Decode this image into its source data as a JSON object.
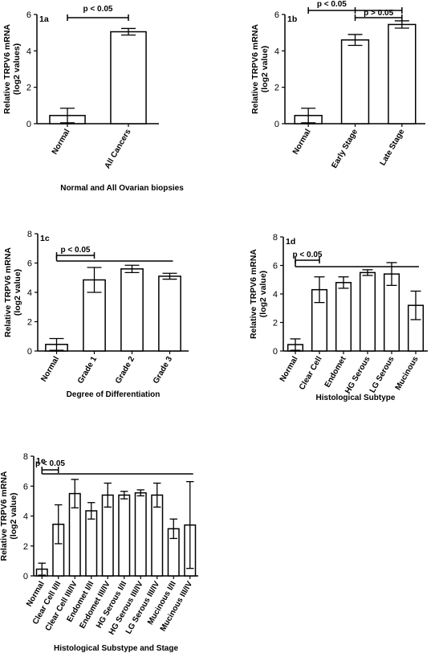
{
  "chart_data": [
    {
      "panel_label": "1a",
      "type": "bar",
      "ylabel_lines": [
        "Relative TRPV6 mRNA",
        "(log2 values)"
      ],
      "xlabel": "Normal and All Ovarian biopsies",
      "ylim": [
        0,
        6
      ],
      "yticks": [
        0,
        2,
        4,
        6
      ],
      "categories": [
        "Normal",
        "All Cancers"
      ],
      "values": [
        0.45,
        5.05
      ],
      "errors": [
        0.4,
        0.18
      ],
      "significance": [
        {
          "label": "p < 0.05",
          "from": 0,
          "to": [
            1
          ]
        }
      ]
    },
    {
      "panel_label": "1b",
      "type": "bar",
      "ylabel_lines": [
        "Relative TRPV6 mRNA",
        "(log2 value)"
      ],
      "xlabel": "",
      "ylim": [
        0,
        6
      ],
      "yticks": [
        0,
        2,
        4,
        6
      ],
      "categories": [
        "Normal",
        "Early Stage",
        "Late Stage"
      ],
      "values": [
        0.45,
        4.6,
        5.45
      ],
      "errors": [
        0.4,
        0.3,
        0.2
      ],
      "significance": [
        {
          "label": "p < 0.05",
          "from": 0,
          "to": [
            1,
            2
          ]
        },
        {
          "label": "p > 0.05",
          "from": 1,
          "to": [
            2
          ]
        }
      ]
    },
    {
      "panel_label": "1c",
      "type": "bar",
      "ylabel_lines": [
        "Relative TRPV6 mRNA",
        "(log2 value)"
      ],
      "xlabel": "Degree of Differentiation",
      "ylim": [
        0,
        8
      ],
      "yticks": [
        0,
        2,
        4,
        6,
        8
      ],
      "categories": [
        "Normal",
        "Grade 1",
        "Grade 2",
        "Grade 3"
      ],
      "values": [
        0.45,
        4.85,
        5.6,
        5.1
      ],
      "errors": [
        0.4,
        0.85,
        0.25,
        0.2
      ],
      "significance": [
        {
          "label": "p < 0.05",
          "from": 0,
          "to": [
            1,
            2,
            3
          ]
        }
      ]
    },
    {
      "panel_label": "1d",
      "type": "bar",
      "ylabel_lines": [
        "Relative TRPV6 mRNA",
        "(log2 value)"
      ],
      "xlabel": "Histological Subtype",
      "ylim": [
        0,
        8
      ],
      "yticks": [
        0,
        2,
        4,
        6,
        8
      ],
      "categories": [
        "Normal",
        "Clear Cell",
        "Endomet",
        "HG Serous",
        "LG Serous",
        "Mucinous"
      ],
      "values": [
        0.45,
        4.3,
        4.8,
        5.5,
        5.4,
        3.2
      ],
      "errors": [
        0.4,
        0.9,
        0.4,
        0.2,
        0.8,
        1.0
      ],
      "significance": [
        {
          "label": "p < 0.05",
          "from": 0,
          "to": [
            1,
            2,
            3,
            4,
            5
          ]
        }
      ]
    },
    {
      "panel_label": "1e",
      "type": "bar",
      "ylabel_lines": [
        "Relative TRPV6 mRNA",
        "(log2 value)"
      ],
      "xlabel": "Histological Substype and Stage",
      "ylim": [
        0,
        8
      ],
      "yticks": [
        0,
        2,
        4,
        6,
        8
      ],
      "categories": [
        "Normal",
        "Clear Cell I/II",
        "Clear Cell III/IV",
        "Endomet I/II",
        "Endomet III/IV",
        "HG Serous I/II",
        "HG Serous III/IV",
        "LG Serous III/IV",
        "Mucinous I/II",
        "Mucinous III/IV"
      ],
      "values": [
        0.45,
        3.45,
        5.5,
        4.35,
        5.4,
        5.4,
        5.55,
        5.4,
        3.15,
        3.4
      ],
      "errors": [
        0.4,
        1.3,
        0.95,
        0.55,
        0.8,
        0.25,
        0.2,
        0.8,
        0.65,
        2.9
      ],
      "significance": [
        {
          "label": "p < 0.05",
          "from": 0,
          "to": [
            1,
            2,
            3,
            4,
            5,
            6,
            7,
            8,
            9
          ]
        }
      ]
    }
  ]
}
